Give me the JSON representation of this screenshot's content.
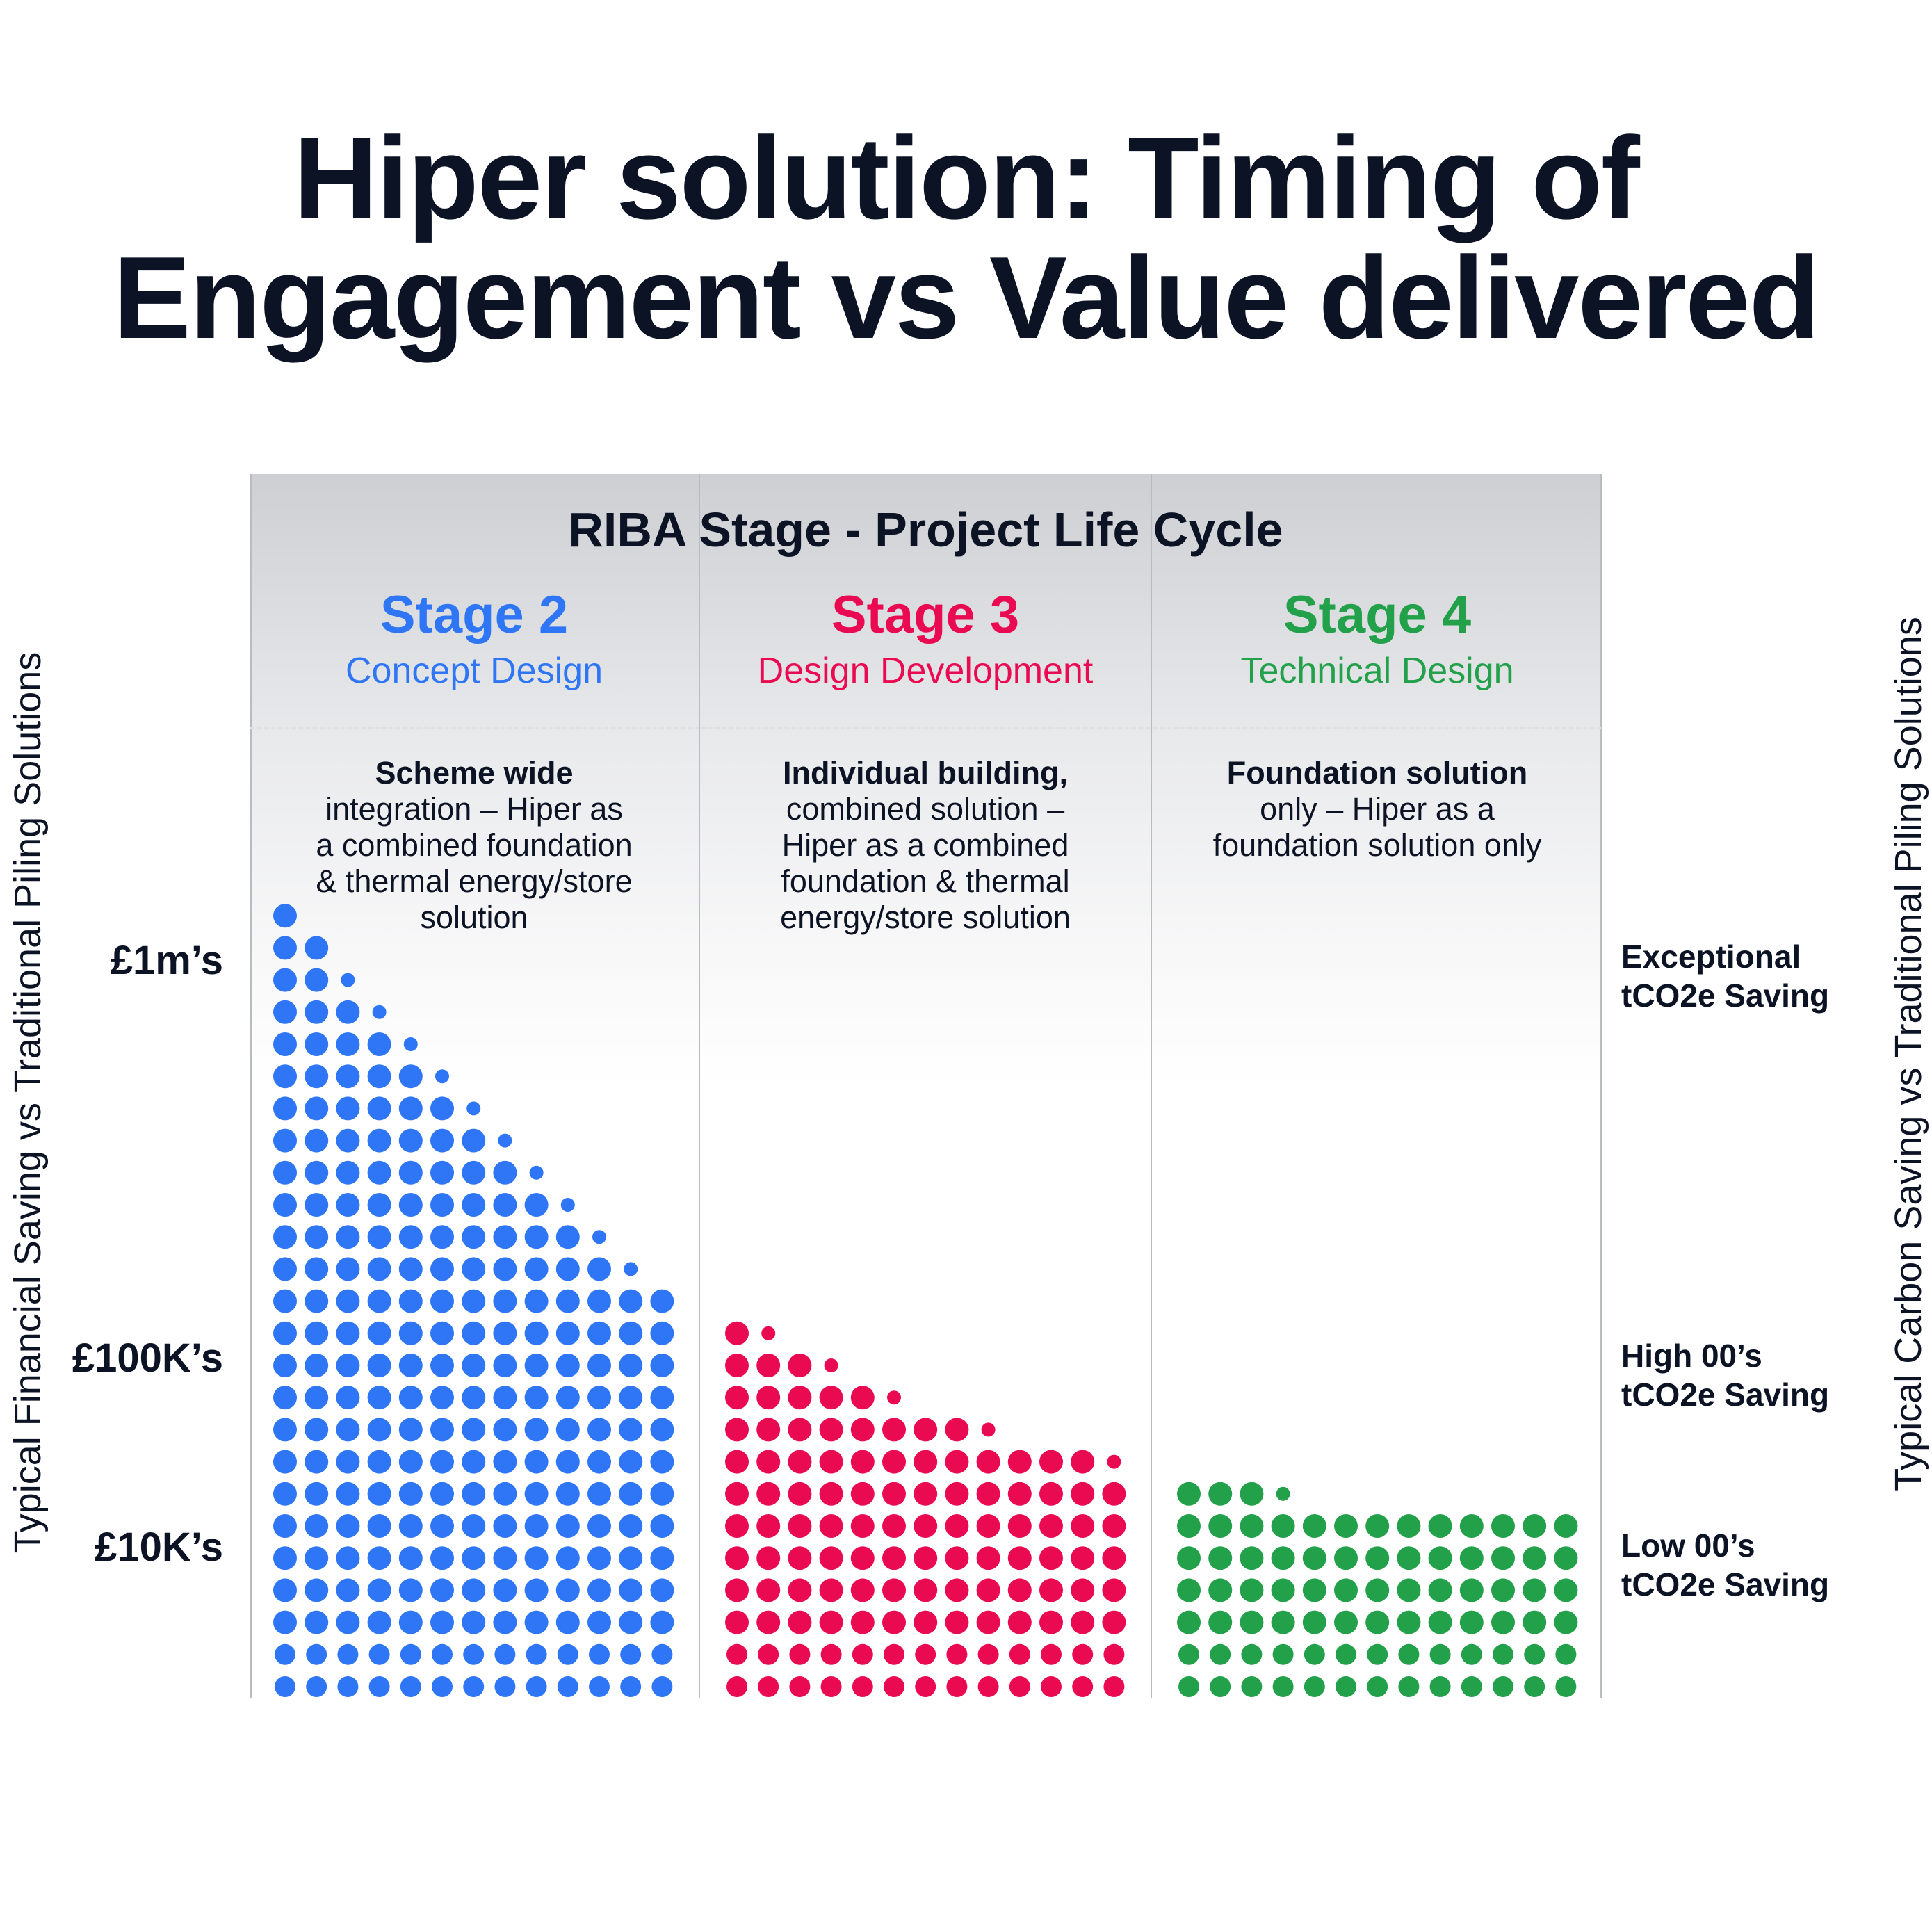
{
  "title_line1": "Hiper solution: Timing of",
  "title_line2": "Engagement vs Value delivered",
  "panel_heading": "RIBA Stage - Project Life Cycle",
  "left_axis_label": "Typical Financial Saving vs Traditional Piling Solutions",
  "right_axis_label": "Typical Carbon Saving vs Traditional Piling Solutions",
  "left_ticks": [
    "£1m’s",
    "£100K’s",
    "£10K’s"
  ],
  "right_ticks": [
    {
      "line1": "Exceptional",
      "line2": "tCO2e Saving"
    },
    {
      "line1": "High 00’s",
      "line2": "tCO2e Saving"
    },
    {
      "line1": "Low 00’s",
      "line2": "tCO2e Saving"
    }
  ],
  "stages": [
    {
      "title": "Stage 2",
      "subtitle": "Concept Design",
      "color": "#2f76f6",
      "desc_bold": "Scheme wide",
      "desc_rest": "integration – Hiper as a combined foundation & thermal energy/store solution",
      "desc_lines": [
        "integration – Hiper as",
        "a combined foundation",
        "& thermal energy/store",
        "solution"
      ]
    },
    {
      "title": "Stage 3",
      "subtitle": "Design Development",
      "color": "#ea0a52",
      "desc_bold": "Individual building,",
      "desc_lines": [
        "combined solution –",
        "Hiper as a combined",
        "foundation & thermal",
        "energy/store solution"
      ]
    },
    {
      "title": "Stage 4",
      "subtitle": "Technical Design",
      "color": "#22a04a",
      "desc_bold": "Foundation solution",
      "desc_lines": [
        "only – Hiper as a",
        "foundation solution only"
      ]
    }
  ],
  "chart_data": {
    "type": "dot-matrix",
    "title": "Hiper solution: Timing of Engagement vs Value delivered",
    "ylabel_left": "Typical Financial Saving vs Traditional Piling Solutions",
    "ylabel_right": "Typical Carbon Saving vs Traditional Piling Solutions",
    "categories": [
      "Stage 2",
      "Stage 3",
      "Stage 4"
    ],
    "series": [
      {
        "name": "Stage 2",
        "color": "#2f76f6",
        "column_heights": [
          25,
          24,
          23,
          22,
          21,
          20,
          19,
          18,
          17,
          16,
          15,
          14,
          13
        ],
        "small_top": [
          0,
          0,
          1,
          1,
          1,
          1,
          1,
          1,
          1,
          1,
          1,
          1,
          0
        ]
      },
      {
        "name": "Stage 3",
        "color": "#ea0a52",
        "column_heights": [
          12,
          12,
          11,
          11,
          10,
          10,
          9,
          9,
          9,
          8,
          8,
          8,
          8
        ],
        "small_top": [
          0,
          1,
          0,
          1,
          0,
          1,
          0,
          0,
          1,
          0,
          0,
          0,
          1
        ]
      },
      {
        "name": "Stage 4",
        "color": "#22a04a",
        "column_heights": [
          7,
          7,
          7,
          7,
          6,
          6,
          6,
          6,
          6,
          6,
          6,
          6,
          6
        ],
        "small_top": [
          0,
          0,
          0,
          1,
          0,
          0,
          0,
          0,
          0,
          0,
          0,
          0,
          0
        ]
      }
    ]
  }
}
